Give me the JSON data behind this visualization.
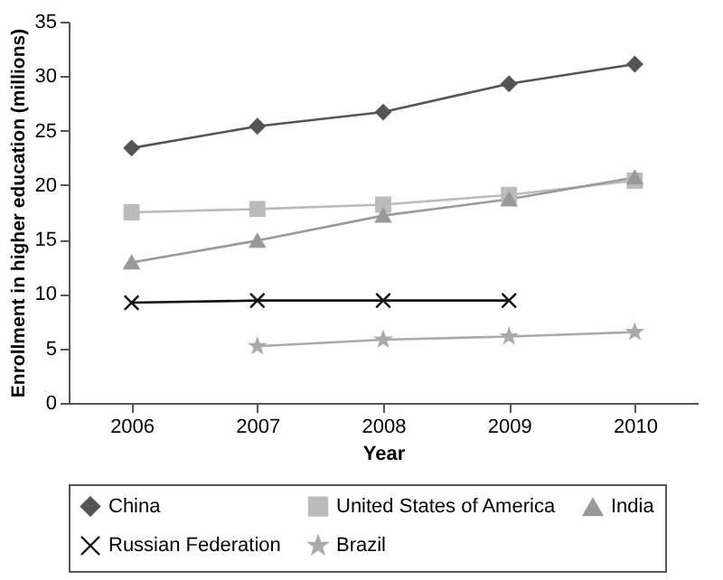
{
  "chart_data": {
    "type": "line",
    "xlabel": "Year",
    "ylabel": "Enrollment in higher education (millions)",
    "categories": [
      "2006",
      "2007",
      "2008",
      "2009",
      "2010"
    ],
    "ylim": [
      0,
      35
    ],
    "yticks": [
      0,
      5,
      10,
      15,
      20,
      25,
      30,
      35
    ],
    "grid": false,
    "legend": "bottom",
    "line_style": "solid",
    "series": [
      {
        "name": "China",
        "color": "#555555",
        "marker": "diamond",
        "values": [
          23.4,
          25.4,
          26.7,
          29.3,
          31.1
        ]
      },
      {
        "name": "United States of America",
        "color": "#bbbbbb",
        "marker": "square",
        "values": [
          17.5,
          17.8,
          18.2,
          19.1,
          20.4
        ]
      },
      {
        "name": "India",
        "color": "#999999",
        "marker": "triangle",
        "values": [
          12.9,
          14.9,
          17.2,
          18.7,
          20.7
        ]
      },
      {
        "name": "Russian Federation",
        "color": "#111111",
        "marker": "cross",
        "values": [
          9.2,
          9.4,
          9.4,
          9.4,
          null
        ]
      },
      {
        "name": "Brazil",
        "color": "#aaaaaa",
        "marker": "star",
        "values": [
          null,
          5.2,
          5.8,
          6.1,
          6.5
        ]
      }
    ]
  }
}
